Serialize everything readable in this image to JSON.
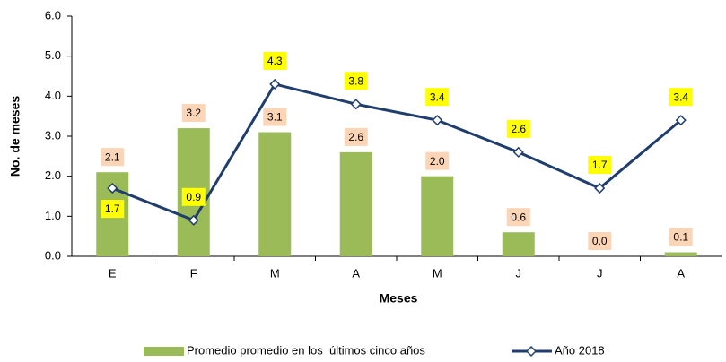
{
  "chart_data": {
    "type": "bar",
    "categories": [
      "E",
      "F",
      "M",
      "A",
      "M",
      "J",
      "J",
      "A"
    ],
    "x_label": "Meses",
    "y_label": "No. de meses",
    "ylim": [
      0,
      6
    ],
    "yticks": [
      {
        "value": 0,
        "label": "0.0"
      },
      {
        "value": 1,
        "label": "1.0"
      },
      {
        "value": 2,
        "label": "2.0"
      },
      {
        "value": 3,
        "label": "3.0"
      },
      {
        "value": 4,
        "label": "4.0"
      },
      {
        "value": 5,
        "label": "5.0"
      },
      {
        "value": 6,
        "label": "6.0"
      }
    ],
    "series": [
      {
        "name": "Promedio promedio en los  últimos cinco años",
        "type": "bar",
        "color": "#9bbb59",
        "label_color": "#fbd5b5",
        "values": [
          2.1,
          3.2,
          3.1,
          2.6,
          2.0,
          0.6,
          0.0,
          0.1
        ],
        "value_labels": [
          "2.1",
          "3.2",
          "3.1",
          "2.6",
          "2.0",
          "0.6",
          "0.0",
          "0.1"
        ]
      },
      {
        "name": "Año 2018",
        "type": "line",
        "color": "#1f3d6d",
        "label_color": "#ffff00",
        "values": [
          1.7,
          0.9,
          4.3,
          3.8,
          3.4,
          2.6,
          1.7,
          3.4
        ],
        "value_labels": [
          "1.7",
          "0.9",
          "4.3",
          "3.8",
          "3.4",
          "2.6",
          "1.7",
          "3.4"
        ]
      }
    ]
  }
}
